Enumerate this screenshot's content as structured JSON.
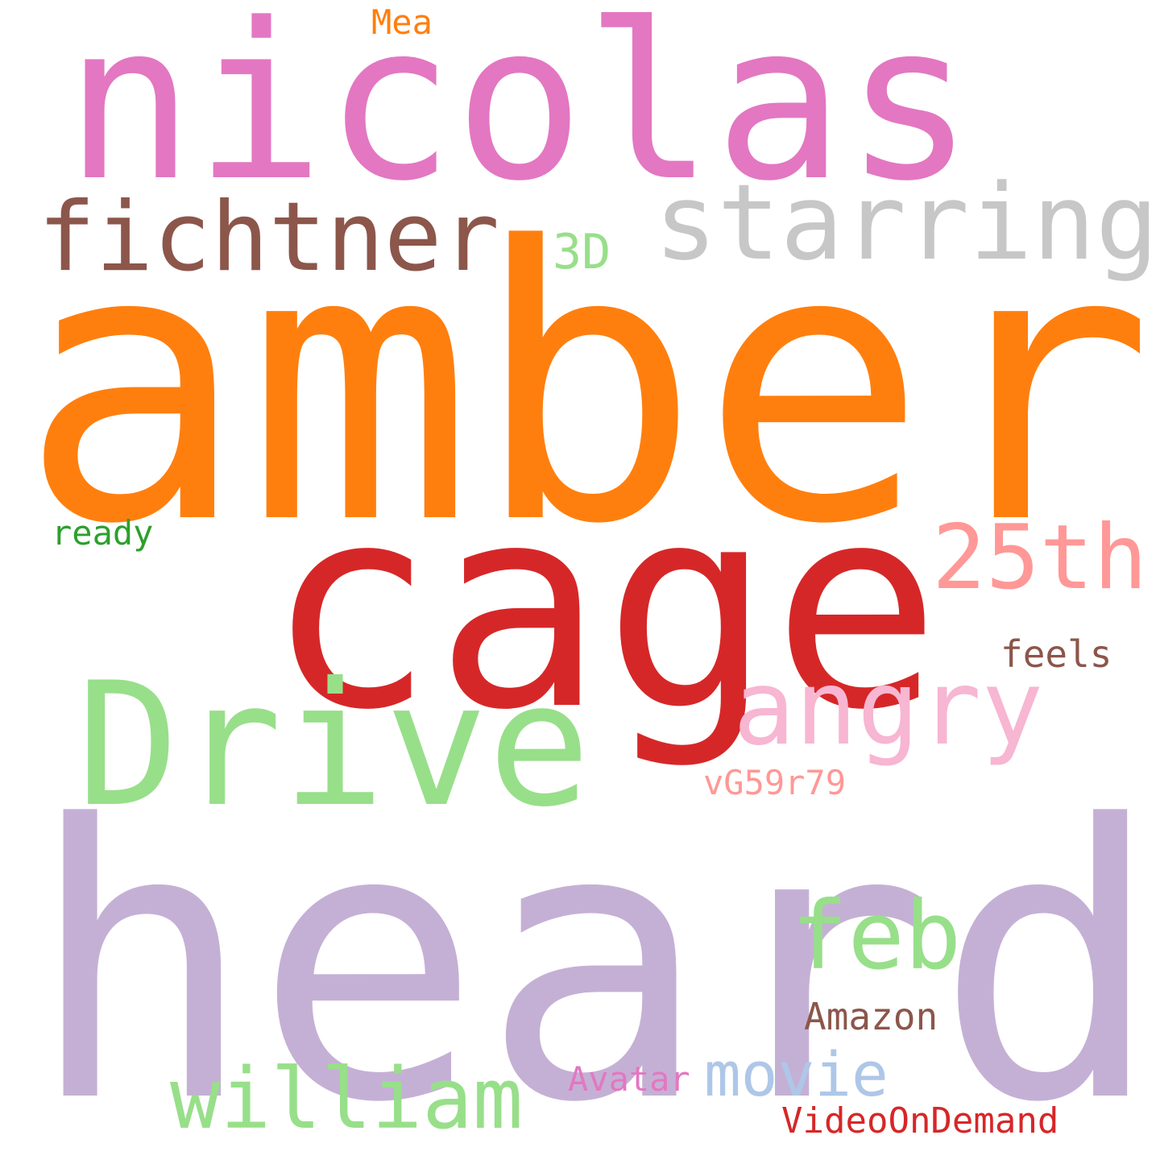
{
  "words": {
    "heard": {
      "text": "heard",
      "color": "#c5b0d5"
    },
    "amber": {
      "text": "amber",
      "color": "#ff7f0e"
    },
    "nicolas": {
      "text": "nicolas",
      "color": "#e377c2"
    },
    "cage": {
      "text": "cage",
      "color": "#d62728"
    },
    "drive": {
      "text": "Drive",
      "color": "#98df8a"
    },
    "starring": {
      "text": "starring",
      "color": "#c7c7c7"
    },
    "fichtner": {
      "text": "fichtner",
      "color": "#8c564b"
    },
    "angry": {
      "text": "angry",
      "color": "#f7b6d2"
    },
    "twentyfifth": {
      "text": "25th",
      "color": "#ff9896"
    },
    "feb": {
      "text": "feb",
      "color": "#98df8a"
    },
    "william": {
      "text": "william",
      "color": "#98df8a"
    },
    "movie": {
      "text": "movie",
      "color": "#aec7e8"
    },
    "threed": {
      "text": "3D",
      "color": "#98df8a"
    },
    "amazon": {
      "text": "Amazon",
      "color": "#8c564b"
    },
    "feels": {
      "text": "feels",
      "color": "#8c564b"
    },
    "vg59r79": {
      "text": "vG59r79",
      "color": "#ff9896"
    },
    "ready": {
      "text": "ready",
      "color": "#2ca02c"
    },
    "avatar": {
      "text": "Avatar",
      "color": "#e377c2"
    },
    "videoondemand": {
      "text": "VideoOnDemand",
      "color": "#d62728"
    },
    "mea": {
      "text": "Mea",
      "color": "#ff7f0e"
    }
  }
}
